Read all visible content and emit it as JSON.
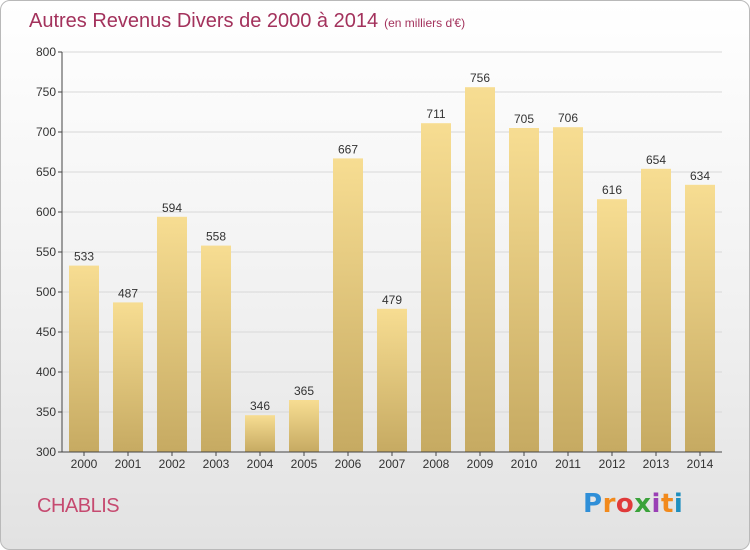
{
  "header": {
    "title": "Autres Revenus Divers de 2000 à 2014",
    "unit": "(en milliers d'€)"
  },
  "footer": {
    "commune": "CHABLIS",
    "logo_text": "Proxiti"
  },
  "colors": {
    "title": "#a3325c",
    "bar_top": "#f7dd92",
    "bar_bottom": "#c6aa62",
    "grid": "#d8d8d8",
    "axis": "#444444"
  },
  "chart_data": {
    "type": "bar",
    "title": "Autres Revenus Divers de 2000 à 2014",
    "subtitle": "(en milliers d'€)",
    "xlabel": "",
    "ylabel": "",
    "categories": [
      "2000",
      "2001",
      "2002",
      "2003",
      "2004",
      "2005",
      "2006",
      "2007",
      "2008",
      "2009",
      "2010",
      "2011",
      "2012",
      "2013",
      "2014"
    ],
    "values": [
      533,
      487,
      594,
      558,
      346,
      365,
      667,
      479,
      711,
      756,
      705,
      706,
      616,
      654,
      634
    ],
    "ylim": [
      300,
      800
    ],
    "yticks": [
      300,
      350,
      400,
      450,
      500,
      550,
      600,
      650,
      700,
      750,
      800
    ],
    "grid": true,
    "legend": "none",
    "data_labels": true
  }
}
